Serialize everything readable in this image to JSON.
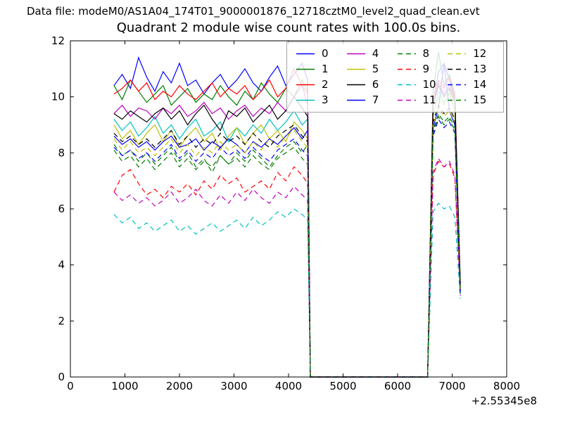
{
  "figure": {
    "data_file_label": "Data file: modeM0/AS1A04_174T01_9000001876_12718cztM0_level2_quad_clean.evt",
    "background": "#ffffff"
  },
  "chart_data": {
    "type": "line",
    "title": "Quadrant 2 module wise count rates with 100.0s bins.",
    "xlabel": "",
    "ylabel": "",
    "xlim": [
      0,
      8000
    ],
    "ylim": [
      0,
      12
    ],
    "xticks": [
      0,
      1000,
      2000,
      3000,
      4000,
      5000,
      6000,
      7000,
      8000
    ],
    "yticks": [
      0,
      2,
      4,
      6,
      8,
      10,
      12
    ],
    "x_offset_label": "+2.55345e8",
    "grid": false,
    "legend": {
      "position": "upper right",
      "columns": 4,
      "labels": [
        "0",
        "1",
        "2",
        "3",
        "4",
        "5",
        "6",
        "7",
        "8",
        "9",
        "10",
        "11",
        "12",
        "13",
        "14",
        "15"
      ]
    },
    "x": [
      800,
      950,
      1100,
      1250,
      1400,
      1550,
      1700,
      1850,
      2000,
      2150,
      2300,
      2450,
      2600,
      2750,
      2900,
      3050,
      3200,
      3350,
      3500,
      3650,
      3800,
      3950,
      4100,
      4250,
      4350,
      4400,
      4450,
      5000,
      5500,
      6000,
      6500,
      6550,
      6650,
      6750,
      6850,
      6950,
      7050,
      7150
    ],
    "series": [
      {
        "label": "0",
        "color": "#0000ff",
        "linestyle": "solid",
        "values": [
          10.4,
          10.8,
          10.3,
          11.4,
          10.7,
          10.2,
          10.9,
          10.5,
          11.2,
          10.4,
          10.6,
          10.1,
          10.5,
          10.8,
          10.3,
          10.6,
          11.0,
          10.5,
          10.2,
          10.7,
          11.1,
          10.4,
          10.8,
          11.2,
          10.6,
          0,
          0,
          0,
          0,
          0,
          0,
          0,
          9.8,
          10.9,
          11.2,
          10.6,
          9.9,
          3.3
        ]
      },
      {
        "label": "1",
        "color": "#007f00",
        "linestyle": "solid",
        "values": [
          10.4,
          9.9,
          10.6,
          10.2,
          9.8,
          10.1,
          10.4,
          9.7,
          10.0,
          10.3,
          9.8,
          10.1,
          9.9,
          10.4,
          10.0,
          9.7,
          10.2,
          9.9,
          10.5,
          10.1,
          9.8,
          10.3,
          10.0,
          10.6,
          10.2,
          0,
          0,
          0,
          0,
          0,
          0,
          0,
          10.2,
          11.6,
          10.4,
          10.8,
          10.1,
          3.4
        ]
      },
      {
        "label": "2",
        "color": "#ff0000",
        "linestyle": "solid",
        "values": [
          10.1,
          10.3,
          10.6,
          10.2,
          10.5,
          9.9,
          10.2,
          10.0,
          10.4,
          10.1,
          9.9,
          10.2,
          10.5,
          10.0,
          10.3,
          10.1,
          10.4,
          9.9,
          10.2,
          10.6,
          10.0,
          10.3,
          11.0,
          10.4,
          10.1,
          0,
          0,
          0,
          0,
          0,
          0,
          0,
          9.9,
          10.6,
          10.3,
          10.7,
          10.0,
          3.3
        ]
      },
      {
        "label": "3",
        "color": "#00bfbf",
        "linestyle": "solid",
        "values": [
          9.2,
          8.8,
          9.1,
          8.6,
          8.9,
          9.3,
          8.7,
          9.0,
          8.5,
          8.9,
          9.2,
          8.6,
          8.8,
          9.1,
          8.4,
          8.9,
          8.6,
          9.0,
          8.7,
          9.2,
          8.8,
          9.1,
          9.5,
          9.0,
          9.2,
          0,
          0,
          0,
          0,
          0,
          0,
          0,
          9.3,
          10.2,
          9.8,
          10.1,
          9.5,
          3.1
        ]
      },
      {
        "label": "4",
        "color": "#bf00bf",
        "linestyle": "solid",
        "values": [
          9.4,
          9.7,
          9.3,
          9.6,
          9.5,
          9.2,
          9.6,
          9.4,
          9.7,
          9.3,
          9.5,
          9.8,
          9.4,
          9.6,
          9.2,
          9.5,
          9.7,
          9.3,
          9.6,
          9.4,
          9.8,
          9.5,
          10.0,
          10.4,
          9.7,
          0,
          0,
          0,
          0,
          0,
          0,
          0,
          9.8,
          10.5,
          10.1,
          10.4,
          9.9,
          3.2
        ]
      },
      {
        "label": "5",
        "color": "#bfbf00",
        "linestyle": "solid",
        "values": [
          9.0,
          8.5,
          8.8,
          8.3,
          8.7,
          9.0,
          8.4,
          8.8,
          8.2,
          8.6,
          8.9,
          8.4,
          8.7,
          8.1,
          8.6,
          8.9,
          8.3,
          8.7,
          9.0,
          8.5,
          8.8,
          8.4,
          9.1,
          8.8,
          8.5,
          0,
          0,
          0,
          0,
          0,
          0,
          0,
          9.4,
          10.0,
          9.7,
          10.2,
          9.5,
          3.2
        ]
      },
      {
        "label": "6",
        "color": "#000000",
        "linestyle": "solid",
        "values": [
          9.4,
          9.2,
          9.5,
          9.3,
          9.1,
          9.4,
          9.6,
          9.2,
          9.5,
          9.0,
          9.4,
          9.7,
          9.2,
          8.8,
          9.5,
          9.3,
          9.6,
          9.1,
          9.4,
          9.7,
          9.2,
          9.5,
          10.0,
          9.6,
          9.3,
          0,
          0,
          0,
          0,
          0,
          0,
          0,
          9.7,
          10.4,
          10.0,
          10.3,
          9.8,
          3.3
        ]
      },
      {
        "label": "7",
        "color": "#0000ff",
        "linestyle": "solid",
        "values": [
          8.6,
          8.3,
          8.5,
          8.2,
          8.4,
          8.1,
          8.4,
          8.6,
          8.2,
          8.3,
          8.5,
          8.1,
          8.4,
          8.2,
          8.5,
          8.3,
          8.0,
          8.4,
          8.2,
          8.5,
          8.3,
          8.6,
          8.9,
          8.5,
          8.8,
          0,
          0,
          0,
          0,
          0,
          0,
          0,
          8.9,
          9.6,
          11.2,
          9.5,
          9.0,
          3.0
        ]
      },
      {
        "label": "8",
        "color": "#007f00",
        "linestyle": "dashed",
        "values": [
          8.3,
          7.9,
          8.1,
          7.7,
          8.0,
          7.6,
          7.9,
          8.2,
          7.7,
          8.0,
          7.5,
          7.8,
          7.3,
          7.9,
          7.6,
          8.0,
          7.7,
          8.1,
          7.8,
          7.5,
          7.9,
          8.2,
          8.4,
          8.0,
          8.3,
          0,
          0,
          0,
          0,
          0,
          0,
          0,
          8.8,
          9.4,
          9.1,
          9.3,
          8.9,
          3.0
        ]
      },
      {
        "label": "9",
        "color": "#ff0000",
        "linestyle": "dashed",
        "values": [
          6.6,
          7.2,
          7.4,
          6.9,
          6.5,
          6.7,
          6.4,
          6.8,
          6.6,
          6.9,
          6.5,
          7.0,
          6.7,
          7.2,
          6.9,
          7.1,
          6.6,
          6.8,
          7.0,
          6.7,
          7.3,
          7.0,
          7.5,
          7.2,
          6.9,
          0,
          0,
          0,
          0,
          0,
          0,
          0,
          7.2,
          7.7,
          7.5,
          7.6,
          7.1,
          2.9
        ]
      },
      {
        "label": "10",
        "color": "#00bfbf",
        "linestyle": "dashed",
        "values": [
          5.8,
          5.5,
          5.7,
          5.3,
          5.5,
          5.2,
          5.4,
          5.6,
          5.2,
          5.4,
          5.1,
          5.3,
          5.5,
          5.2,
          5.4,
          5.6,
          5.3,
          5.7,
          5.4,
          5.6,
          5.9,
          5.7,
          6.0,
          5.8,
          5.6,
          0,
          0,
          0,
          0,
          0,
          0,
          0,
          5.9,
          6.2,
          6.0,
          6.1,
          5.7,
          2.8
        ]
      },
      {
        "label": "11",
        "color": "#bf00bf",
        "linestyle": "dashed",
        "values": [
          6.6,
          6.3,
          6.5,
          6.2,
          6.4,
          6.1,
          6.3,
          6.6,
          6.2,
          6.4,
          6.7,
          6.3,
          6.1,
          6.5,
          6.2,
          6.6,
          6.3,
          6.7,
          6.4,
          6.2,
          6.6,
          6.4,
          6.8,
          6.5,
          6.3,
          0,
          0,
          0,
          0,
          0,
          0,
          0,
          7.3,
          7.8,
          7.5,
          7.7,
          7.2,
          2.9
        ]
      },
      {
        "label": "12",
        "color": "#bfbf00",
        "linestyle": "dashed",
        "values": [
          8.5,
          8.1,
          8.4,
          8.0,
          8.2,
          7.9,
          8.2,
          8.5,
          8.0,
          8.3,
          7.9,
          8.2,
          8.0,
          8.4,
          8.1,
          8.3,
          8.0,
          8.4,
          8.1,
          8.5,
          8.2,
          8.6,
          8.8,
          8.4,
          8.2,
          0,
          0,
          0,
          0,
          0,
          0,
          0,
          9.0,
          9.6,
          9.3,
          9.5,
          9.1,
          3.1
        ]
      },
      {
        "label": "13",
        "color": "#000000",
        "linestyle": "dashed",
        "values": [
          8.7,
          8.4,
          8.6,
          8.3,
          8.5,
          8.2,
          8.5,
          8.8,
          8.3,
          8.6,
          8.2,
          8.5,
          8.3,
          8.7,
          8.4,
          8.6,
          8.3,
          8.7,
          8.4,
          8.2,
          8.6,
          8.8,
          9.0,
          8.6,
          8.4,
          0,
          0,
          0,
          0,
          0,
          0,
          0,
          9.1,
          9.7,
          9.4,
          9.6,
          9.2,
          3.1
        ]
      },
      {
        "label": "14",
        "color": "#0000ff",
        "linestyle": "dashed",
        "values": [
          8.2,
          7.9,
          8.1,
          7.8,
          8.0,
          7.7,
          8.0,
          8.3,
          7.8,
          8.1,
          7.7,
          8.0,
          7.8,
          8.2,
          7.9,
          8.1,
          7.8,
          8.2,
          7.9,
          7.7,
          8.1,
          8.3,
          8.5,
          8.1,
          7.9,
          0,
          0,
          0,
          0,
          0,
          0,
          0,
          8.6,
          9.2,
          8.9,
          9.1,
          8.7,
          3.0
        ]
      },
      {
        "label": "15",
        "color": "#007f00",
        "linestyle": "dashed",
        "values": [
          8.1,
          7.7,
          7.9,
          7.5,
          7.8,
          7.4,
          7.7,
          8.0,
          7.5,
          7.8,
          7.4,
          7.7,
          7.5,
          7.9,
          7.6,
          7.8,
          7.5,
          7.9,
          7.6,
          7.4,
          7.8,
          8.0,
          8.2,
          7.8,
          7.6,
          0,
          0,
          0,
          0,
          0,
          0,
          0,
          8.7,
          9.3,
          9.0,
          9.2,
          8.8,
          3.0
        ]
      }
    ]
  }
}
